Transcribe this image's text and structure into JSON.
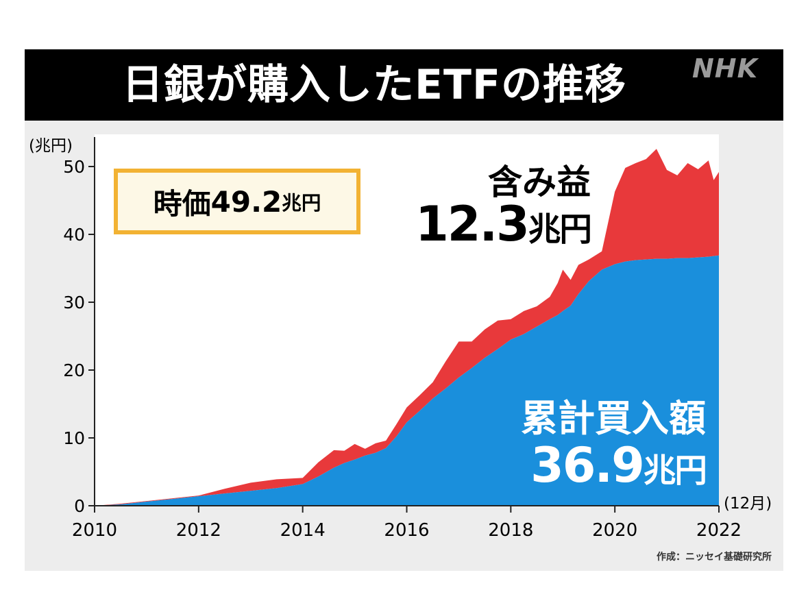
{
  "header": {
    "title": "日銀が購入したETFの推移",
    "logo": "NHK"
  },
  "colors": {
    "unrealized_gain": "#e8393b",
    "cumulative_purchase": "#1a8fdc",
    "box_border": "#f2b233",
    "title_bar": "#000000"
  },
  "annotations": {
    "market_value_label": "時価",
    "market_value_number": "49.2",
    "market_value_unit": "兆円",
    "gain_label": "含み益",
    "gain_number": "12.3",
    "gain_unit": "兆円",
    "cost_label": "累計買入額",
    "cost_number": "36.9",
    "cost_unit": "兆円"
  },
  "source": "作成：ニッセイ基礎研究所",
  "chart_data": {
    "type": "area",
    "stacked": true,
    "y_unit_label": "(兆円)",
    "x_unit_label": "(12月)",
    "xlim": [
      2010,
      2022
    ],
    "ylim": [
      0,
      55
    ],
    "x_ticks": [
      "2010",
      "2012",
      "2014",
      "2016",
      "2018",
      "2020",
      "2022"
    ],
    "y_ticks": [
      "0",
      "10",
      "20",
      "30",
      "40",
      "50"
    ],
    "grid": false,
    "x": [
      2010.0,
      2010.5,
      2011.0,
      2011.5,
      2012.0,
      2012.5,
      2013.0,
      2013.5,
      2014.0,
      2014.3,
      2014.6,
      2014.8,
      2015.0,
      2015.2,
      2015.4,
      2015.6,
      2015.8,
      2016.0,
      2016.25,
      2016.5,
      2016.75,
      2017.0,
      2017.25,
      2017.5,
      2017.75,
      2018.0,
      2018.25,
      2018.5,
      2018.75,
      2018.9,
      2019.0,
      2019.15,
      2019.3,
      2019.5,
      2019.75,
      2020.0,
      2020.2,
      2020.4,
      2020.6,
      2020.8,
      2021.0,
      2021.2,
      2021.4,
      2021.6,
      2021.8,
      2021.9,
      2022.0
    ],
    "series": [
      {
        "name": "累計買入額",
        "values": [
          0,
          0.2,
          0.6,
          1.0,
          1.4,
          1.8,
          2.2,
          2.6,
          3.2,
          4.3,
          5.6,
          6.3,
          6.8,
          7.4,
          7.8,
          8.5,
          10.2,
          12.3,
          14.0,
          15.8,
          17.3,
          18.9,
          20.3,
          21.8,
          23.1,
          24.5,
          25.3,
          26.4,
          27.5,
          28.1,
          28.7,
          29.5,
          31.2,
          33.1,
          34.8,
          35.6,
          36.0,
          36.2,
          36.3,
          36.4,
          36.4,
          36.5,
          36.5,
          36.6,
          36.7,
          36.8,
          36.9
        ]
      },
      {
        "name": "含み益",
        "values": [
          0,
          0.1,
          0.1,
          0.1,
          0.1,
          0.7,
          1.2,
          1.3,
          0.9,
          2.1,
          2.6,
          1.8,
          2.3,
          1.0,
          1.4,
          1.1,
          1.8,
          2.2,
          2.3,
          2.4,
          4.0,
          5.3,
          3.9,
          4.2,
          4.2,
          3.0,
          3.4,
          3.0,
          3.3,
          4.7,
          6.1,
          3.8,
          4.3,
          3.2,
          2.7,
          10.7,
          13.8,
          14.3,
          14.8,
          16.2,
          13.1,
          12.2,
          14.0,
          13.0,
          14.2,
          11.2,
          12.3
        ]
      }
    ]
  }
}
